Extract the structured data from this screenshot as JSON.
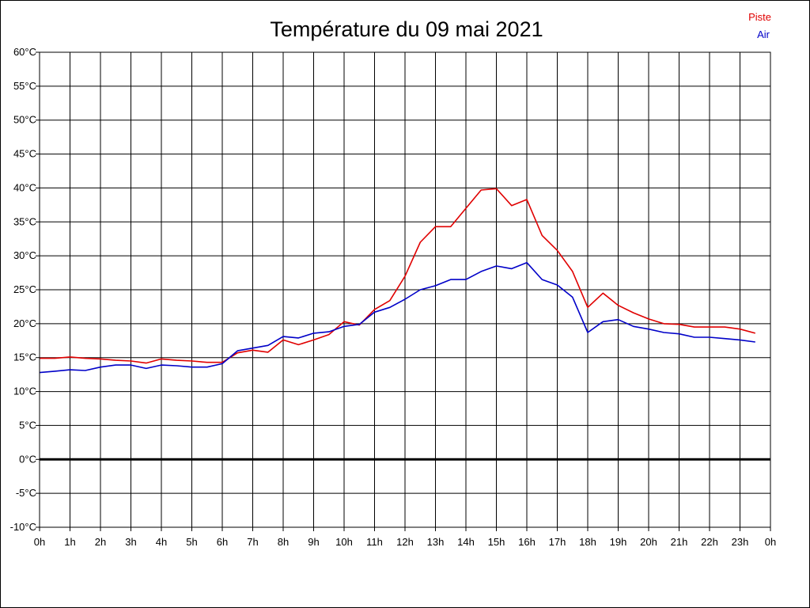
{
  "chart_data": {
    "type": "line",
    "title": "Température du 09 mai 2021",
    "xlabel": "",
    "ylabel": "",
    "ylim": [
      -10,
      60
    ],
    "xlim": [
      0,
      24
    ],
    "grid": true,
    "legend_position": "top-right",
    "y_ticks": [
      -10,
      -5,
      0,
      5,
      10,
      15,
      20,
      25,
      30,
      35,
      40,
      45,
      50,
      55,
      60
    ],
    "y_tick_labels": [
      "-10°C",
      "-5°C",
      "0°C",
      "5°C",
      "10°C",
      "15°C",
      "20°C",
      "25°C",
      "30°C",
      "35°C",
      "40°C",
      "45°C",
      "50°C",
      "55°C",
      "60°C"
    ],
    "x_ticks": [
      0,
      1,
      2,
      3,
      4,
      5,
      6,
      7,
      8,
      9,
      10,
      11,
      12,
      13,
      14,
      15,
      16,
      17,
      18,
      19,
      20,
      21,
      22,
      23,
      24
    ],
    "x_tick_labels": [
      "0h",
      "1h",
      "2h",
      "3h",
      "4h",
      "5h",
      "6h",
      "7h",
      "8h",
      "9h",
      "10h",
      "11h",
      "12h",
      "13h",
      "14h",
      "15h",
      "16h",
      "17h",
      "18h",
      "19h",
      "20h",
      "21h",
      "22h",
      "23h",
      "0h"
    ],
    "x": [
      0,
      0.5,
      1,
      1.5,
      2,
      2.5,
      3,
      3.5,
      4,
      4.5,
      5,
      5.5,
      6,
      6.5,
      7,
      7.5,
      8,
      8.5,
      9,
      9.5,
      10,
      10.5,
      11,
      11.5,
      12,
      12.5,
      13,
      13.5,
      14,
      14.5,
      15,
      15.5,
      16,
      16.5,
      17,
      17.5,
      18,
      18.5,
      19,
      19.5,
      20,
      20.5,
      21,
      21.5,
      22,
      22.5,
      23,
      23.5
    ],
    "series": [
      {
        "name": "Piste",
        "color": "#e00000",
        "values": [
          14.9,
          14.9,
          15.1,
          14.9,
          14.8,
          14.6,
          14.5,
          14.2,
          14.8,
          14.6,
          14.5,
          14.3,
          14.3,
          15.7,
          16.1,
          15.8,
          17.6,
          16.9,
          17.6,
          18.4,
          20.3,
          19.8,
          22.1,
          23.4,
          27.0,
          32.0,
          34.3,
          34.3,
          37.0,
          39.7,
          39.9,
          37.4,
          38.3,
          33.0,
          30.8,
          27.7,
          22.4,
          24.5,
          22.7,
          21.6,
          20.7,
          20.0,
          19.9,
          19.5,
          19.5,
          19.5,
          19.2,
          18.6
        ]
      },
      {
        "name": "Air",
        "color": "#0000c8",
        "values": [
          12.8,
          13.0,
          13.2,
          13.1,
          13.6,
          13.9,
          13.9,
          13.4,
          13.9,
          13.8,
          13.6,
          13.6,
          14.1,
          16.0,
          16.4,
          16.8,
          18.1,
          17.9,
          18.6,
          18.8,
          19.6,
          19.9,
          21.7,
          22.4,
          23.6,
          25.0,
          25.6,
          26.5,
          26.5,
          27.7,
          28.5,
          28.1,
          29.0,
          26.5,
          25.7,
          23.9,
          18.7,
          20.3,
          20.6,
          19.6,
          19.2,
          18.7,
          18.5,
          18.0,
          18.0,
          17.8,
          17.6,
          17.3
        ]
      }
    ]
  }
}
